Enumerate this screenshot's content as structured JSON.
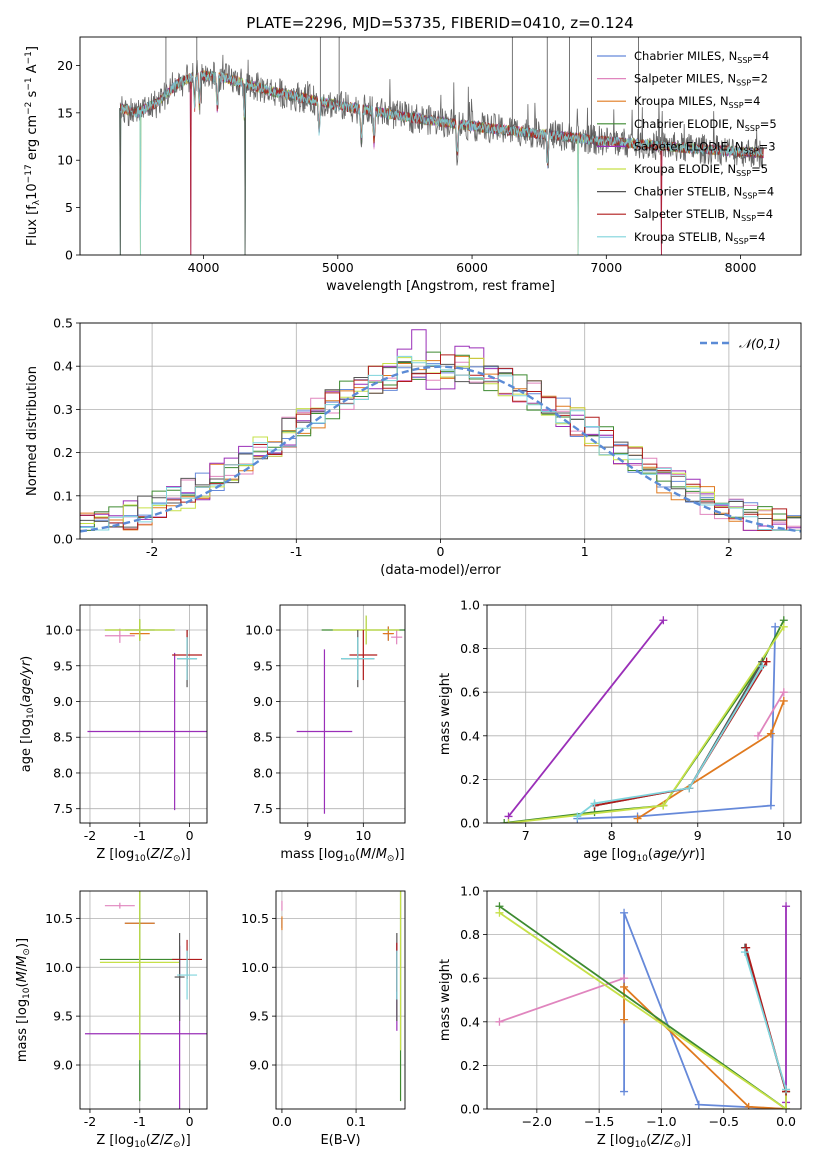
{
  "figure_title": "PLATE=2296, MJD=53735, FIBERID=0410, z=0.124",
  "models": [
    {
      "label": "Chabrier MILES, N",
      "nssp": "4",
      "color": "#6689d9"
    },
    {
      "label": "Salpeter MILES, N",
      "nssp": "2",
      "color": "#e085be"
    },
    {
      "label": "Kroupa MILES, N",
      "nssp": "4",
      "color": "#e07a1f"
    },
    {
      "label": "Chabrier ELODIE, N",
      "nssp": "5",
      "color": "#3d8a30"
    },
    {
      "label": "Salpeter ELODIE, N",
      "nssp": "3",
      "color": "#9a2fb8"
    },
    {
      "label": "Kroupa ELODIE, N",
      "nssp": "5",
      "color": "#c6e048"
    },
    {
      "label": "Chabrier STELIB, N",
      "nssp": "4",
      "color": "#555555"
    },
    {
      "label": "Salpeter STELIB, N",
      "nssp": "4",
      "color": "#b01c1c"
    },
    {
      "label": "Kroupa STELIB, N",
      "nssp": "4",
      "color": "#7fd4dc"
    }
  ],
  "chart_data": [
    {
      "type": "line",
      "id": "spectrum",
      "xlabel": "wavelength [Angstrom, rest frame]",
      "ylabel": "Flux [f",
      "xlim": [
        3080,
        8450
      ],
      "ylim": [
        0,
        23
      ],
      "xticks": [
        4000,
        5000,
        6000,
        7000,
        8000
      ],
      "yticks": [
        0,
        5,
        10,
        15,
        20
      ],
      "continuum": [
        [
          3380,
          15.5
        ],
        [
          3500,
          15.0
        ],
        [
          3650,
          16.0
        ],
        [
          3800,
          18.0
        ],
        [
          3950,
          19.0
        ],
        [
          4150,
          18.7
        ],
        [
          4500,
          17.3
        ],
        [
          5000,
          15.8
        ],
        [
          5500,
          14.6
        ],
        [
          6000,
          13.6
        ],
        [
          6500,
          12.8
        ],
        [
          7000,
          12.0
        ],
        [
          7500,
          11.4
        ],
        [
          8000,
          10.9
        ],
        [
          8170,
          10.7
        ]
      ],
      "dips": [
        [
          3380,
          0
        ],
        [
          3530,
          0
        ],
        [
          3905,
          0
        ],
        [
          4310,
          0
        ],
        [
          6790,
          0
        ],
        [
          7410,
          0
        ]
      ],
      "spikes": [
        [
          3720,
          24
        ],
        [
          3950,
          24
        ],
        [
          4870,
          24
        ],
        [
          5010,
          24
        ],
        [
          6300,
          24
        ],
        [
          6560,
          24
        ],
        [
          6725,
          24
        ],
        [
          6890,
          24
        ],
        [
          7240,
          24
        ]
      ],
      "grid": false,
      "legend": "top-right"
    },
    {
      "type": "histogram",
      "id": "residuals",
      "xlabel": "(data-model)/error",
      "ylabel": "Normed distribution",
      "xlim": [
        -2.5,
        2.5
      ],
      "ylim": [
        0,
        0.5
      ],
      "xticks": [
        -2,
        -1,
        0,
        1,
        2
      ],
      "yticks": [
        0.0,
        0.1,
        0.2,
        0.3,
        0.4,
        0.5
      ],
      "bin_width": 0.1,
      "reference_curve": "𝒩(0,1)",
      "reference_color": "#5b8bd6",
      "grid": true,
      "legend": "top-right"
    },
    {
      "type": "scatter",
      "id": "age-vs-Z",
      "xlabel": "Z [log",
      "ylabel": "age  [log",
      "xlim": [
        -2.2,
        0.35
      ],
      "ylim": [
        7.3,
        10.35
      ],
      "xticks": [
        -2,
        -1,
        0
      ],
      "yticks": [
        7.5,
        8.0,
        8.5,
        9.0,
        9.5,
        10.0
      ],
      "points": [
        {
          "model": 0,
          "x": -1.0,
          "y": 10.0,
          "xerr": 0.3,
          "yerr": 0.05
        },
        {
          "model": 1,
          "x": -1.4,
          "y": 9.92,
          "xerr": 0.3,
          "yerr": 0.1
        },
        {
          "model": 2,
          "x": -1.0,
          "y": 9.95,
          "xerr": 0.2,
          "yerr": 0.08
        },
        {
          "model": 3,
          "x": -1.0,
          "y": 10.0,
          "xerr": 0.7,
          "yerr": 0.15
        },
        {
          "model": 4,
          "x": -0.3,
          "y": 8.58,
          "xerr": 1.75,
          "yerr": 1.1
        },
        {
          "model": 5,
          "x": -1.0,
          "y": 10.0,
          "xerr": 0.7,
          "yerr": 0.15
        },
        {
          "model": 6,
          "x": -0.05,
          "y": 9.6,
          "xerr": 0.2,
          "yerr": 0.4
        },
        {
          "model": 7,
          "x": -0.05,
          "y": 9.65,
          "xerr": 0.3,
          "yerr": 0.35
        },
        {
          "model": 8,
          "x": -0.05,
          "y": 9.6,
          "xerr": 0.2,
          "yerr": 0.3
        }
      ]
    },
    {
      "type": "scatter",
      "id": "age-vs-mass",
      "xlabel": "mass [log",
      "ylabel": "",
      "xlim": [
        8.5,
        10.75
      ],
      "ylim": [
        7.3,
        10.35
      ],
      "xticks": [
        9,
        10
      ],
      "yticks": [
        7.5,
        8.0,
        8.5,
        9.0,
        9.5,
        10.0
      ],
      "points": [
        {
          "model": 0,
          "x": 10.45,
          "y": 9.95,
          "xerr": 0.08,
          "yerr": 0.1
        },
        {
          "model": 1,
          "x": 10.6,
          "y": 9.9,
          "xerr": 0.1,
          "yerr": 0.1
        },
        {
          "model": 2,
          "x": 10.45,
          "y": 9.95,
          "xerr": 0.1,
          "yerr": 0.1
        },
        {
          "model": 3,
          "x": 10.05,
          "y": 10.0,
          "xerr": 0.8,
          "yerr": 0.2
        },
        {
          "model": 4,
          "x": 9.3,
          "y": 8.58,
          "xerr": 0.5,
          "yerr": 1.15
        },
        {
          "model": 5,
          "x": 10.05,
          "y": 10.0,
          "xerr": 0.6,
          "yerr": 0.2
        },
        {
          "model": 6,
          "x": 9.9,
          "y": 9.6,
          "xerr": 0.3,
          "yerr": 0.4
        },
        {
          "model": 7,
          "x": 10.0,
          "y": 9.65,
          "xerr": 0.25,
          "yerr": 0.35
        },
        {
          "model": 8,
          "x": 9.9,
          "y": 9.6,
          "xerr": 0.3,
          "yerr": 0.3
        }
      ]
    },
    {
      "type": "line",
      "id": "massweight-vs-age",
      "xlabel": "age  [log",
      "ylabel": "mass weight",
      "xlim": [
        6.55,
        10.2
      ],
      "ylim": [
        0,
        1.0
      ],
      "xticks": [
        7,
        8,
        9,
        10
      ],
      "yticks": [
        0.0,
        0.2,
        0.4,
        0.6,
        0.8,
        1.0
      ],
      "series": [
        {
          "model": 0,
          "points": [
            [
              7.6,
              0.02
            ],
            [
              8.3,
              0.03
            ],
            [
              9.85,
              0.08
            ],
            [
              9.9,
              0.9
            ]
          ]
        },
        {
          "model": 1,
          "points": [
            [
              9.7,
              0.4
            ],
            [
              10.0,
              0.6
            ]
          ]
        },
        {
          "model": 2,
          "points": [
            [
              8.3,
              0.02
            ],
            [
              9.85,
              0.41
            ],
            [
              10.0,
              0.56
            ]
          ]
        },
        {
          "model": 3,
          "points": [
            [
              6.75,
              0.0
            ],
            [
              7.8,
              0.05
            ],
            [
              8.6,
              0.08
            ],
            [
              9.75,
              0.74
            ],
            [
              10.0,
              0.93
            ]
          ]
        },
        {
          "model": 4,
          "points": [
            [
              6.8,
              0.03
            ],
            [
              8.6,
              0.93
            ]
          ]
        },
        {
          "model": 5,
          "points": [
            [
              6.8,
              0.0
            ],
            [
              8.6,
              0.08
            ],
            [
              10.0,
              0.9
            ]
          ]
        },
        {
          "model": 6,
          "points": [
            [
              7.8,
              0.08
            ],
            [
              8.9,
              0.16
            ],
            [
              9.75,
              0.74
            ]
          ]
        },
        {
          "model": 7,
          "points": [
            [
              7.8,
              0.08
            ],
            [
              8.9,
              0.16
            ],
            [
              9.8,
              0.74
            ]
          ]
        },
        {
          "model": 8,
          "points": [
            [
              7.6,
              0.03
            ],
            [
              7.8,
              0.09
            ],
            [
              8.9,
              0.16
            ],
            [
              9.75,
              0.72
            ]
          ]
        }
      ]
    },
    {
      "type": "scatter",
      "id": "mass-vs-Z",
      "xlabel": "Z [log",
      "ylabel": "mass [log",
      "xlim": [
        -2.2,
        0.35
      ],
      "ylim": [
        8.55,
        10.78
      ],
      "xticks": [
        -2,
        -1,
        0
      ],
      "yticks": [
        9.0,
        9.5,
        10.0,
        10.5
      ],
      "points": [
        {
          "model": 0,
          "x": -1.0,
          "y": 10.45,
          "xerr": 0.3,
          "yerr": 0.02
        },
        {
          "model": 1,
          "x": -1.4,
          "y": 10.63,
          "xerr": 0.3,
          "yerr": 0.03
        },
        {
          "model": 2,
          "x": -1.0,
          "y": 10.45,
          "xerr": 0.3,
          "yerr": 0.05
        },
        {
          "model": 3,
          "x": -1.0,
          "y": 10.08,
          "xerr": 0.8,
          "yerr": 1.45
        },
        {
          "model": 4,
          "x": -0.2,
          "y": 9.32,
          "xerr": 1.9,
          "yerr": 0.9
        },
        {
          "model": 5,
          "x": -1.0,
          "y": 10.05,
          "xerr": 0.8,
          "yerr": 1.0
        },
        {
          "model": 6,
          "x": -0.2,
          "y": 9.9,
          "xerr": 0.1,
          "yerr": 0.45
        },
        {
          "model": 7,
          "x": -0.05,
          "y": 10.08,
          "xerr": 0.3,
          "yerr": 0.2
        },
        {
          "model": 8,
          "x": -0.05,
          "y": 9.92,
          "xerr": 0.2,
          "yerr": 0.25
        }
      ]
    },
    {
      "type": "scatter",
      "id": "mass-vs-EBV",
      "xlabel": "E(B-V)",
      "ylabel": "",
      "xlim": [
        -0.008,
        0.166
      ],
      "ylim": [
        8.55,
        10.78
      ],
      "xticks": [
        0.0,
        0.1
      ],
      "yticks": [
        9.0,
        9.5,
        10.0,
        10.5
      ],
      "points": [
        {
          "model": 0,
          "x": 0.0,
          "y": 10.45,
          "xerr": 0.0,
          "yerr": 0.05
        },
        {
          "model": 1,
          "x": 0.0,
          "y": 10.63,
          "xerr": 0.0,
          "yerr": 0.05
        },
        {
          "model": 2,
          "x": 0.0,
          "y": 10.45,
          "xerr": 0.0,
          "yerr": 0.07
        },
        {
          "model": 3,
          "x": 0.16,
          "y": 10.08,
          "xerr": 0.0,
          "yerr": 1.45
        },
        {
          "model": 4,
          "x": 0.155,
          "y": 9.8,
          "xerr": 0.0,
          "yerr": 0.45
        },
        {
          "model": 5,
          "x": 0.16,
          "y": 10.05,
          "xerr": 0.0,
          "yerr": 0.9
        },
        {
          "model": 6,
          "x": 0.155,
          "y": 9.9,
          "xerr": 0.0,
          "yerr": 0.45
        },
        {
          "model": 7,
          "x": 0.155,
          "y": 10.0,
          "xerr": 0.0,
          "yerr": 0.25
        },
        {
          "model": 8,
          "x": 0.155,
          "y": 9.92,
          "xerr": 0.0,
          "yerr": 0.25
        }
      ]
    },
    {
      "type": "line",
      "id": "massweight-vs-Z",
      "xlabel": "Z [log",
      "ylabel": "mass weight",
      "xlim": [
        -2.4,
        0.12
      ],
      "ylim": [
        0,
        1.0
      ],
      "xticks": [
        -2.0,
        -1.5,
        -1.0,
        -0.5,
        0.0
      ],
      "yticks": [
        0.0,
        0.2,
        0.4,
        0.6,
        0.8,
        1.0
      ],
      "series": [
        {
          "model": 0,
          "points": [
            [
              -1.3,
              0.08
            ],
            [
              -1.3,
              0.9
            ],
            [
              -0.7,
              0.02
            ],
            [
              0.0,
              0.0
            ]
          ]
        },
        {
          "model": 1,
          "points": [
            [
              -2.3,
              0.4
            ],
            [
              -1.3,
              0.6
            ]
          ]
        },
        {
          "model": 2,
          "points": [
            [
              -1.3,
              0.41
            ],
            [
              -1.3,
              0.56
            ],
            [
              -0.3,
              0.01
            ],
            [
              0.0,
              0.0
            ]
          ]
        },
        {
          "model": 3,
          "points": [
            [
              -2.3,
              0.93
            ],
            [
              0.0,
              0.0
            ],
            [
              0.0,
              0.08
            ]
          ]
        },
        {
          "model": 4,
          "points": [
            [
              0.0,
              0.93
            ],
            [
              0.0,
              0.03
            ]
          ]
        },
        {
          "model": 5,
          "points": [
            [
              -2.3,
              0.9
            ],
            [
              0.0,
              0.0
            ],
            [
              0.0,
              0.08
            ]
          ]
        },
        {
          "model": 6,
          "points": [
            [
              -0.33,
              0.74
            ],
            [
              0.0,
              0.08
            ]
          ]
        },
        {
          "model": 7,
          "points": [
            [
              -0.32,
              0.74
            ],
            [
              0.0,
              0.08
            ]
          ]
        },
        {
          "model": 8,
          "points": [
            [
              -0.33,
              0.72
            ],
            [
              0.0,
              0.09
            ]
          ]
        }
      ]
    }
  ]
}
